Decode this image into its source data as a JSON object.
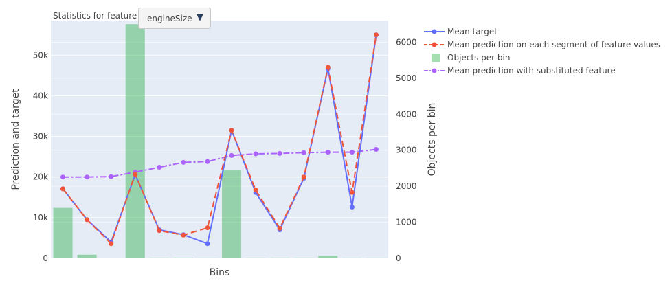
{
  "header": {
    "stats_label": "Statistics for feature"
  },
  "dropdown": {
    "selected": "engineSize",
    "arrow": "▼"
  },
  "colors": {
    "plot_bg": "#e5ecf6",
    "grid": "#ffffff",
    "mean_target": "#636efa",
    "mean_prediction": "#ef553b",
    "objects_per_bin": "#00a020",
    "substituted": "#ab63fa"
  },
  "chart_data": {
    "type": "bar+line",
    "xlabel": "Bins",
    "ylabel": "Prediction and target",
    "y2label": "Objects per bin",
    "ylim": [
      0,
      58500
    ],
    "y2lim": [
      0,
      6600
    ],
    "yticks": [
      {
        "value": 0,
        "label": "0"
      },
      {
        "value": 10000,
        "label": "10k"
      },
      {
        "value": 20000,
        "label": "20k"
      },
      {
        "value": 30000,
        "label": "30k"
      },
      {
        "value": 40000,
        "label": "40k"
      },
      {
        "value": 50000,
        "label": "50k"
      }
    ],
    "y2ticks": [
      {
        "value": 0,
        "label": "0"
      },
      {
        "value": 1000,
        "label": "1000"
      },
      {
        "value": 2000,
        "label": "2000"
      },
      {
        "value": 3000,
        "label": "3000"
      },
      {
        "value": 4000,
        "label": "4000"
      },
      {
        "value": 5000,
        "label": "5000"
      },
      {
        "value": 6000,
        "label": "6000"
      }
    ],
    "bins": 14,
    "grid": true,
    "legend_position": "right",
    "series": [
      {
        "name": "Mean target",
        "kind": "line",
        "axis": "y",
        "dash": "solid",
        "values": [
          17100,
          9500,
          4000,
          20600,
          7000,
          5800,
          3600,
          31500,
          16200,
          7000,
          19700,
          46700,
          12600,
          55000
        ]
      },
      {
        "name": "Mean prediction on each segment of feature values",
        "kind": "line",
        "axis": "y",
        "dash": "dash",
        "values": [
          17100,
          9500,
          3600,
          20700,
          6800,
          5700,
          7500,
          31500,
          16800,
          7400,
          20000,
          47000,
          16200,
          55000
        ]
      },
      {
        "name": "Objects per bin",
        "kind": "bar",
        "axis": "y2",
        "values": [
          1400,
          100,
          0,
          6500,
          8,
          15,
          5,
          2440,
          8,
          8,
          8,
          70,
          5,
          5
        ]
      },
      {
        "name": "Mean prediction with substituted feature",
        "kind": "line",
        "axis": "y",
        "dash": "dashdot",
        "values": [
          20000,
          20000,
          20100,
          21200,
          22400,
          23600,
          23800,
          25300,
          25700,
          25800,
          26000,
          26100,
          26100,
          26800
        ]
      }
    ]
  }
}
